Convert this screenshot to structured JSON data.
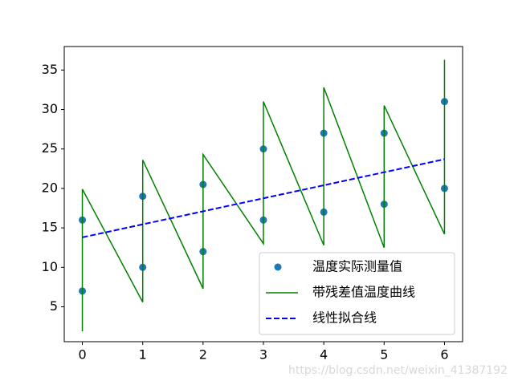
{
  "chart_data": {
    "type": "line",
    "xlim": [
      -0.3,
      6.3
    ],
    "xticks": [
      0,
      1,
      2,
      3,
      4,
      5,
      6
    ],
    "ylim": [
      0.58,
      37.98
    ],
    "yticks": [
      5,
      10,
      15,
      20,
      25,
      30,
      35
    ],
    "grid": false,
    "legend": "lower right",
    "annotation": "https://blog.csdn.net/weixin_41387192",
    "series": [
      {
        "name": "温度实际测量值",
        "type": "scatter",
        "color": "#1f77b4",
        "x": [
          0,
          0,
          1,
          1,
          2,
          2,
          3,
          3,
          4,
          4,
          5,
          5,
          6,
          6
        ],
        "values": [
          16,
          7,
          19,
          10,
          20.5,
          12,
          25,
          16,
          27,
          17,
          27,
          18,
          31,
          20
        ]
      },
      {
        "name": "带残差值温度曲线",
        "type": "line",
        "color": "#008000",
        "linestyle": "solid",
        "x": [
          0,
          0,
          1,
          1,
          2,
          2,
          3,
          3,
          4,
          4,
          5,
          5,
          6,
          6
        ],
        "values": [
          1.9,
          19.9,
          5.6,
          23.6,
          7.3,
          24.3,
          13,
          31,
          12.8,
          32.8,
          12.5,
          30.5,
          14.2,
          36.3
        ]
      },
      {
        "name": "线性拟合线",
        "type": "line",
        "color": "#0000ff",
        "linestyle": "dashed",
        "x": [
          0,
          6
        ],
        "values": [
          13.8,
          23.7
        ]
      }
    ]
  }
}
